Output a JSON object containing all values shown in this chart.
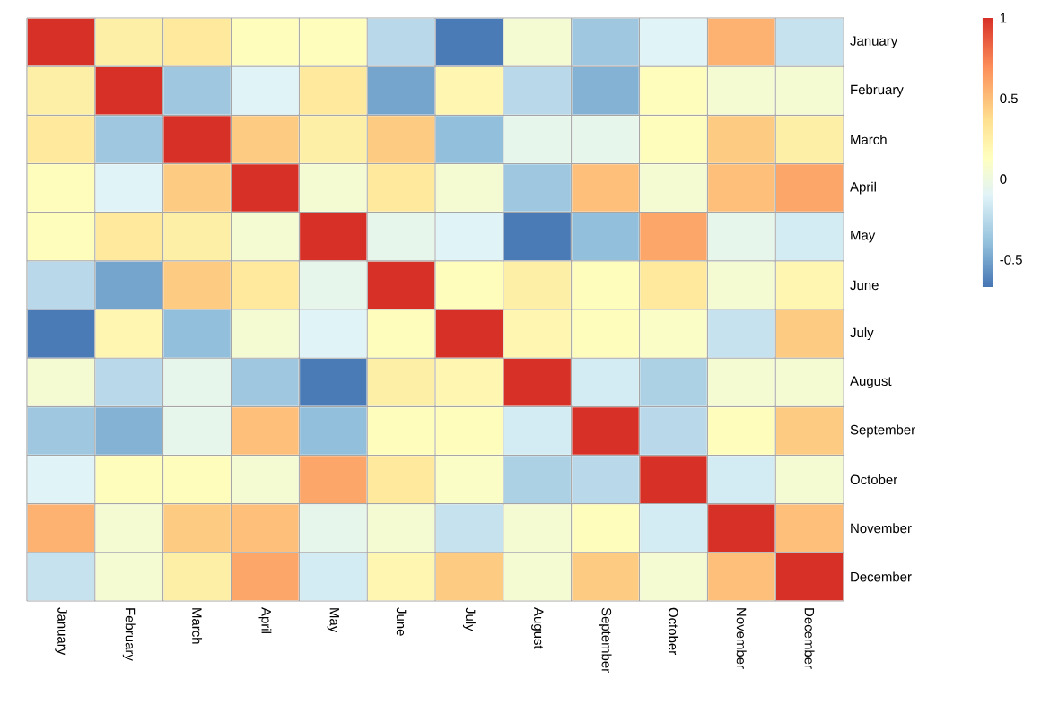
{
  "chart_data": {
    "type": "heatmap",
    "categories": [
      "January",
      "February",
      "March",
      "April",
      "May",
      "June",
      "July",
      "August",
      "September",
      "October",
      "November",
      "December"
    ],
    "y_categories": [
      "January",
      "February",
      "March",
      "April",
      "May",
      "June",
      "July",
      "August",
      "September",
      "October",
      "November",
      "December"
    ],
    "cells": [
      [
        1,
        0.25,
        0.3,
        0.15,
        0.15,
        -0.25,
        -0.65,
        0.05,
        -0.35,
        -0.1,
        0.55,
        -0.2
      ],
      [
        0.25,
        1,
        -0.35,
        -0.1,
        0.3,
        -0.5,
        0.2,
        -0.25,
        -0.45,
        0.15,
        0.05,
        0.05
      ],
      [
        0.3,
        -0.35,
        1,
        0.45,
        0.25,
        0.45,
        -0.4,
        -0.05,
        -0.05,
        0.15,
        0.45,
        0.25
      ],
      [
        0.15,
        -0.1,
        0.45,
        1,
        0.05,
        0.3,
        0.05,
        -0.35,
        0.5,
        0.05,
        0.5,
        0.6
      ],
      [
        0.15,
        0.3,
        0.25,
        0.05,
        1,
        -0.05,
        -0.1,
        -0.65,
        -0.4,
        0.6,
        -0.05,
        -0.15
      ],
      [
        -0.25,
        -0.5,
        0.45,
        0.3,
        -0.05,
        1,
        0.15,
        0.25,
        0.15,
        0.3,
        0.05,
        0.2
      ],
      [
        -0.65,
        0.2,
        -0.4,
        0.05,
        -0.1,
        0.15,
        1,
        0.2,
        0.15,
        0.1,
        -0.2,
        0.45
      ],
      [
        0.05,
        -0.25,
        -0.05,
        -0.35,
        -0.65,
        0.25,
        0.2,
        1,
        -0.15,
        -0.3,
        0.05,
        0.05
      ],
      [
        -0.35,
        -0.45,
        -0.05,
        0.5,
        -0.4,
        0.15,
        0.15,
        -0.15,
        1,
        -0.25,
        0.15,
        0.45
      ],
      [
        -0.1,
        0.15,
        0.15,
        0.05,
        0.6,
        0.3,
        0.1,
        -0.3,
        -0.25,
        1,
        -0.15,
        0.05
      ],
      [
        0.55,
        0.05,
        0.45,
        0.5,
        -0.05,
        0.05,
        -0.2,
        0.05,
        0.15,
        -0.15,
        1,
        0.5
      ],
      [
        -0.2,
        0.05,
        0.25,
        0.6,
        -0.15,
        0.2,
        0.45,
        0.05,
        0.45,
        0.05,
        0.5,
        1
      ]
    ],
    "clim": [
      -0.67,
      1
    ],
    "cticks": [
      -0.5,
      0,
      0.5,
      1
    ],
    "grid": true
  }
}
